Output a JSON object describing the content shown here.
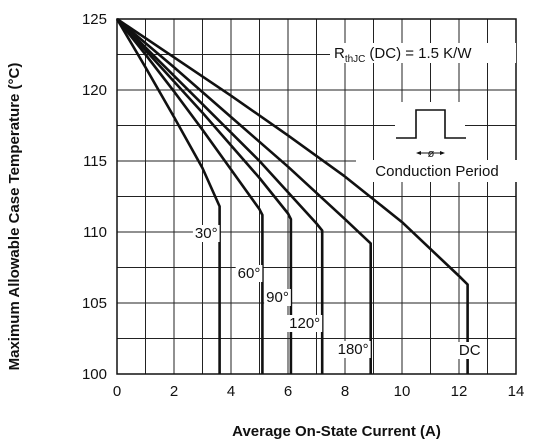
{
  "chart_data": {
    "type": "line",
    "xlabel": "Average On-State Current (A)",
    "ylabel": "Maximum Allowable Case Temperature (°C)",
    "xlim": [
      0,
      14
    ],
    "ylim": [
      100,
      125
    ],
    "x_ticks": [
      0,
      2,
      4,
      6,
      8,
      10,
      12,
      14
    ],
    "y_ticks": [
      100,
      105,
      110,
      115,
      120,
      125
    ],
    "grid": true,
    "series": [
      {
        "name": "30°",
        "points": [
          [
            0,
            125
          ],
          [
            1,
            121.6
          ],
          [
            2,
            118.1
          ],
          [
            3,
            114.5
          ],
          [
            3.6,
            111.8
          ],
          [
            3.6,
            100
          ]
        ]
      },
      {
        "name": "60°",
        "points": [
          [
            0,
            125
          ],
          [
            1,
            122.5
          ],
          [
            2,
            119.9
          ],
          [
            3,
            117.2
          ],
          [
            4,
            114.4
          ],
          [
            5,
            111.6
          ],
          [
            5.1,
            111.2
          ],
          [
            5.1,
            100
          ]
        ]
      },
      {
        "name": "90°",
        "points": [
          [
            0,
            125
          ],
          [
            1,
            122.8
          ],
          [
            2,
            120.6
          ],
          [
            3,
            118.4
          ],
          [
            4,
            116.1
          ],
          [
            5,
            113.8
          ],
          [
            6,
            111.3
          ],
          [
            6.1,
            110.9
          ],
          [
            6.1,
            100
          ]
        ]
      },
      {
        "name": "120°",
        "points": [
          [
            0,
            125
          ],
          [
            1,
            123.0
          ],
          [
            2,
            121.0
          ],
          [
            3,
            119.0
          ],
          [
            4,
            117.0
          ],
          [
            5,
            115.0
          ],
          [
            6,
            112.8
          ],
          [
            7,
            110.6
          ],
          [
            7.2,
            110.1
          ],
          [
            7.2,
            100
          ]
        ]
      },
      {
        "name": "180°",
        "points": [
          [
            0,
            125
          ],
          [
            2,
            121.6
          ],
          [
            4,
            118.1
          ],
          [
            6,
            114.6
          ],
          [
            8,
            110.9
          ],
          [
            8.9,
            109.2
          ],
          [
            8.9,
            100
          ]
        ]
      },
      {
        "name": "DC",
        "points": [
          [
            0,
            125
          ],
          [
            2,
            122.3
          ],
          [
            4,
            119.6
          ],
          [
            6,
            116.8
          ],
          [
            8,
            113.9
          ],
          [
            10,
            110.7
          ],
          [
            12,
            106.9
          ],
          [
            12.3,
            106.3
          ],
          [
            12.3,
            100
          ]
        ]
      }
    ],
    "annotations": {
      "rthjc_main": "R",
      "rthjc_sub": "thJC",
      "rthjc_rest": "(DC) = 1.5 K/W",
      "phi_symbol": "ø",
      "conduction_period": "Conduction Period"
    }
  }
}
